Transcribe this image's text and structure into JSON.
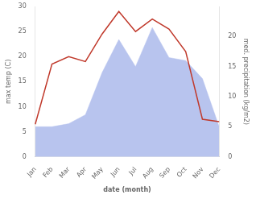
{
  "chart_data": {
    "type": "line",
    "categories": [
      "Jan",
      "Feb",
      "Mar",
      "Apr",
      "May",
      "Jun",
      "Jul",
      "Aug",
      "Sep",
      "Oct",
      "Nov",
      "Dec"
    ],
    "xlabel": "date (month)",
    "ylabel": "max temp (C)",
    "y2label": "med. precipitation (kg/m2)",
    "series": [
      {
        "type": "line",
        "color": "#c0392b",
        "values": [
          6.5,
          18.5,
          20.0,
          19.0,
          24.5,
          29.0,
          25.0,
          27.5,
          25.5,
          21.0,
          7.5,
          7.0
        ]
      },
      {
        "type": "area",
        "axis": "y2",
        "color": "#b8c4ee",
        "values": [
          5.0,
          5.0,
          5.5,
          7.0,
          14.0,
          19.5,
          15.0,
          21.5,
          16.5,
          16.0,
          13.0,
          5.0
        ]
      }
    ],
    "ylim": [
      0,
      30
    ],
    "yticks": [
      0,
      5,
      10,
      15,
      20,
      25,
      30
    ],
    "y2lim": [
      0,
      25
    ],
    "y2ticks": [
      0,
      5,
      10,
      15,
      20
    ],
    "grid": false,
    "legend": false
  }
}
